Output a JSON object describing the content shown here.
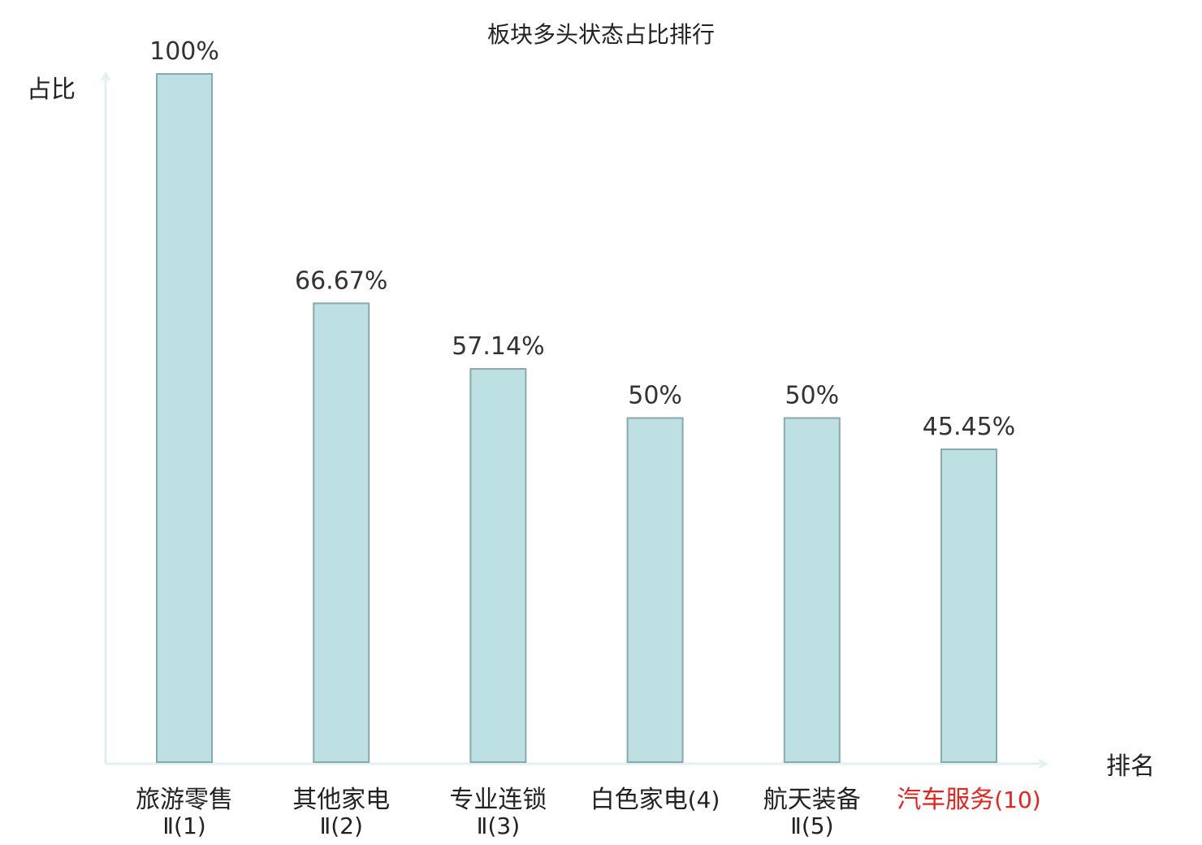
{
  "chart_data": {
    "type": "bar",
    "title": "板块多头状态占比排行",
    "ylabel": "占比",
    "xlabel": "排名",
    "ylim": [
      0,
      100
    ],
    "grid": false,
    "categories": [
      {
        "line1": "旅游零售",
        "line2": "Ⅱ(1)",
        "highlight": false
      },
      {
        "line1": "其他家电",
        "line2": "Ⅱ(2)",
        "highlight": false
      },
      {
        "line1": "专业连锁",
        "line2": "Ⅱ(3)",
        "highlight": false
      },
      {
        "line1": "白色家电",
        "line2": "(4)",
        "highlight": false
      },
      {
        "line1": "航天装备",
        "line2": "Ⅱ(5)",
        "highlight": false
      },
      {
        "line1": "汽车服务",
        "line2": "(10)",
        "highlight": true
      }
    ],
    "values": [
      100,
      66.67,
      57.14,
      50,
      50,
      45.45
    ],
    "value_labels": [
      "100%",
      "66.67%",
      "57.14%",
      "50%",
      "50%",
      "45.45%"
    ],
    "colors": {
      "bar_fill": "#bde0e3",
      "bar_stroke": "#8aa9ac",
      "axis": "#e0f2ef",
      "text": "#222222",
      "value_text": "#333333",
      "highlight": "#e8221c"
    }
  }
}
